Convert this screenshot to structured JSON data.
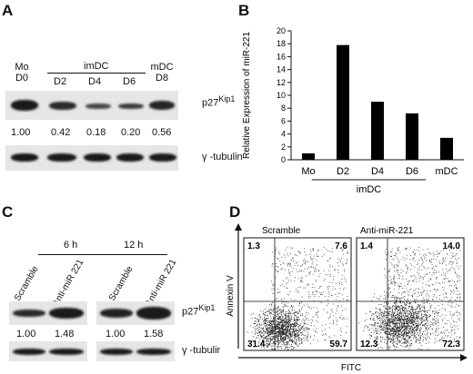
{
  "panelA": {
    "letter": "A",
    "top_left": {
      "l1": "Mo",
      "l2": "D0"
    },
    "group_label": "imDC",
    "lanes_days": [
      "D2",
      "D4",
      "D6"
    ],
    "top_right": {
      "l1": "mDC",
      "l2": "D8"
    },
    "protein_main": "p27",
    "protein_sup": "Kip1",
    "ratios": [
      "1.00",
      "0.42",
      "0.18",
      "0.20",
      "0.56"
    ],
    "tubulin": "γ -tubulin"
  },
  "panelB": {
    "letter": "B",
    "group_label": "imDC"
  },
  "chart_data": {
    "type": "bar",
    "categories": [
      "Mo",
      "D2",
      "D4",
      "D6",
      "mDC"
    ],
    "values": [
      1.0,
      17.8,
      9.0,
      7.2,
      3.4
    ],
    "ylabel": "Relative Expression of miR-221",
    "ylim": [
      0,
      20
    ],
    "yticks": [
      0,
      2,
      4,
      6,
      8,
      10,
      12,
      14,
      16,
      18,
      20
    ],
    "grid": false
  },
  "panelC": {
    "letter": "C",
    "times": [
      "6 h",
      "12 h"
    ],
    "lanes": [
      "Scramble",
      "Anti-miR 221",
      "Scramble",
      "Anti-miR 221"
    ],
    "protein_main": "p27",
    "protein_sup": "Kip1",
    "ratios": [
      "1.00",
      "1.48",
      "1.00",
      "1.58"
    ],
    "tubulin": "γ -tubulir"
  },
  "panelD": {
    "letter": "D",
    "plots": [
      {
        "title": "Scramble",
        "q": [
          "1.3",
          "7.6",
          "31.4",
          "59.7"
        ]
      },
      {
        "title": "Anti-miR-221",
        "q": [
          "1.4",
          "14.0",
          "12.3",
          "72.3"
        ]
      }
    ],
    "ylabel": "Annexin V",
    "xlabel": "FITC"
  }
}
